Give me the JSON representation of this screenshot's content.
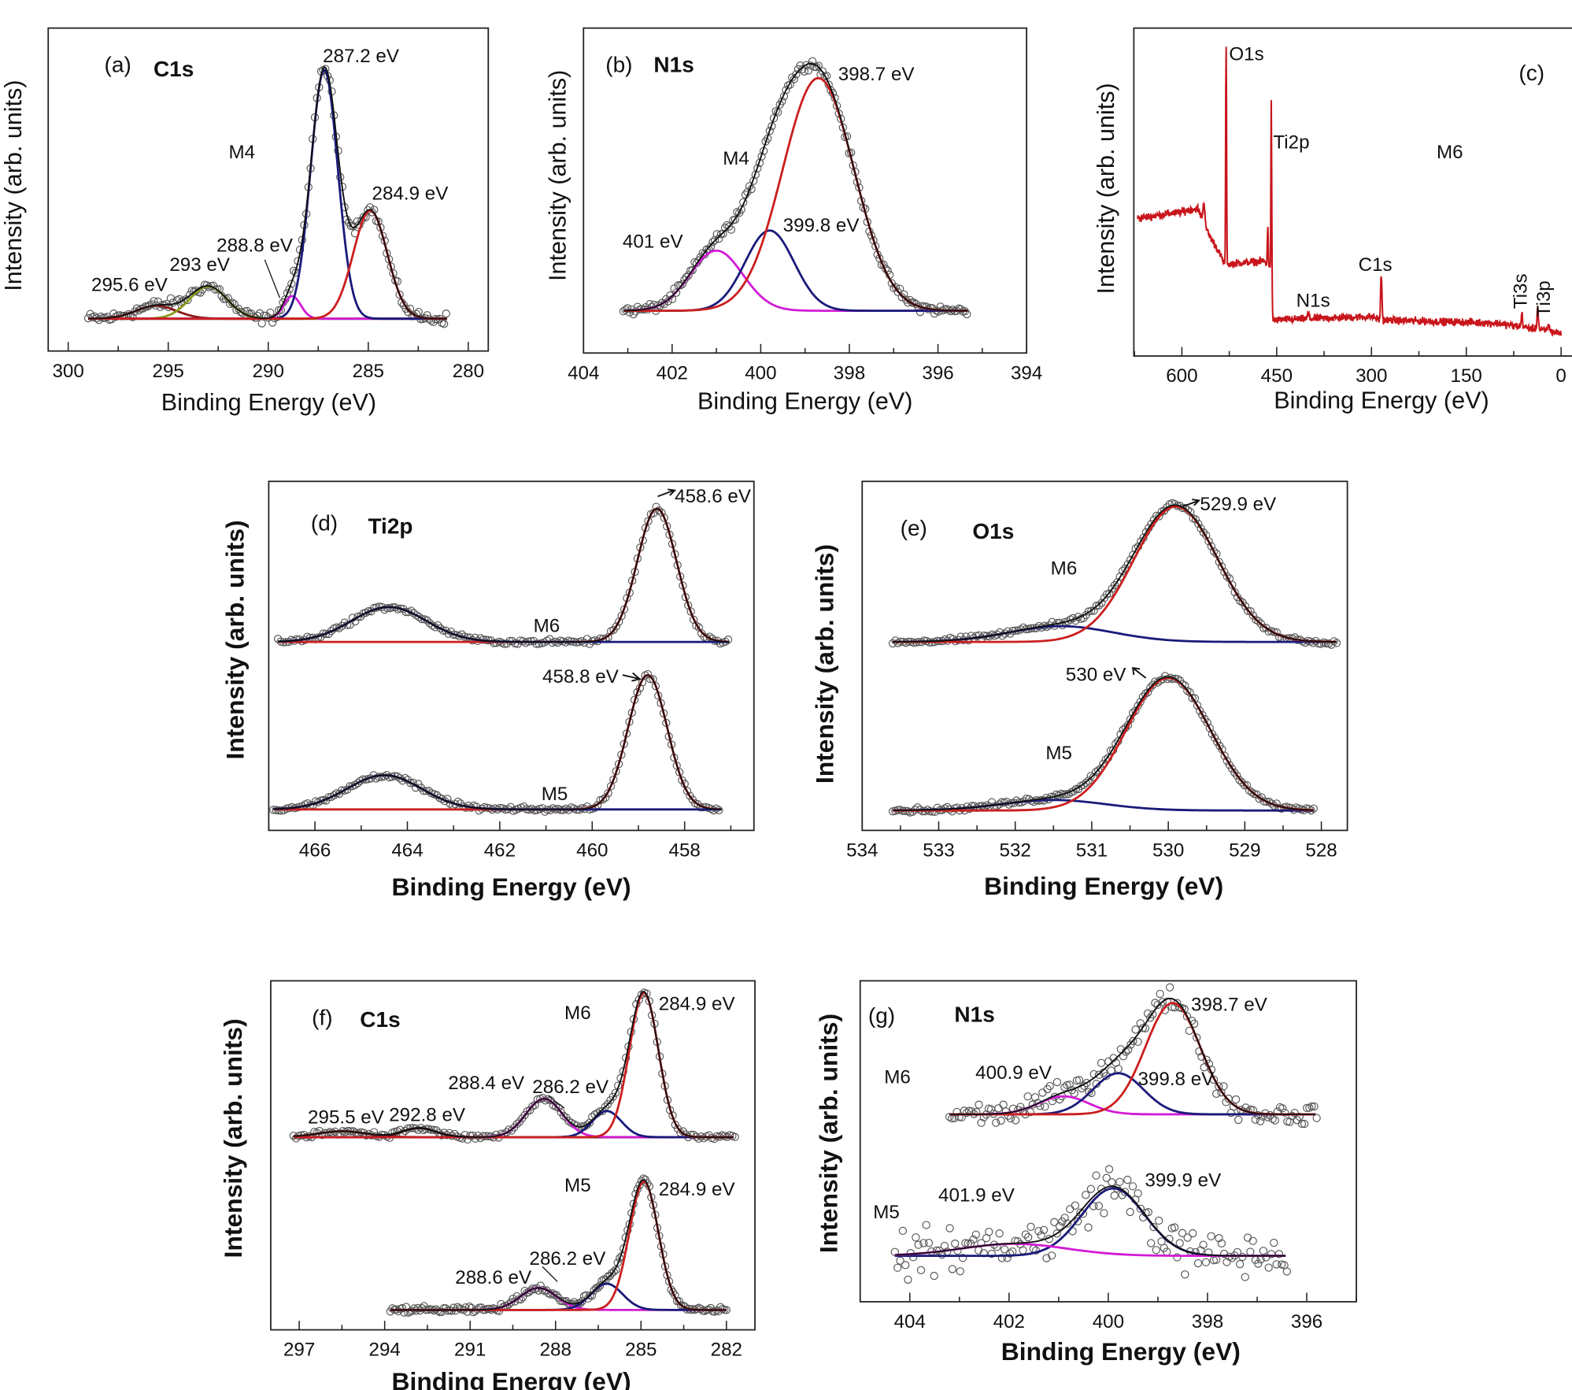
{
  "chart_data": [
    {
      "type": "line",
      "panel": "(a)",
      "title": "C1s",
      "xlabel": "Binding Energy (eV)",
      "ylabel": "Intensity (arb. units)",
      "xlim": [
        301,
        279
      ],
      "ylim": [
        0,
        1
      ],
      "ticks": {
        "major": [
          300,
          295,
          290,
          285,
          280
        ],
        "minor_step": 2.5
      },
      "annotations": [
        "M4",
        "287.2 eV",
        "284.9 eV",
        "288.8 eV",
        "293 eV",
        "295.6 eV"
      ],
      "series": [
        {
          "sample": "M4",
          "offset": 0.1,
          "range": [
            299,
            281
          ],
          "noise": 0.012,
          "components": [
            {
              "center": 295.6,
              "amplitude": 0.04,
              "fwhm": 2.4,
              "color": "#8b1a1a"
            },
            {
              "center": 293.0,
              "amplitude": 0.1,
              "fwhm": 2.2,
              "color": "#8a9a1a"
            },
            {
              "center": 288.8,
              "amplitude": 0.07,
              "fwhm": 1.0,
              "color": "#d21bd6"
            },
            {
              "center": 287.2,
              "amplitude": 0.77,
              "fwhm": 1.6,
              "color": "#1a1a7a"
            },
            {
              "center": 284.9,
              "amplitude": 0.335,
              "fwhm": 2.0,
              "color": "#cc1f1f"
            }
          ]
        }
      ]
    },
    {
      "type": "line",
      "panel": "(b)",
      "title": "N1s",
      "xlabel": "Binding Energy (eV)",
      "ylabel": "Intensity (arb. units)",
      "xlim": [
        404,
        394
      ],
      "ylim": [
        0,
        1
      ],
      "ticks": {
        "major": [
          404,
          402,
          400,
          398,
          396,
          394
        ],
        "minor_step": 1
      },
      "annotations": [
        "M4",
        "398.7 eV",
        "399.8 eV",
        "401 eV"
      ],
      "series": [
        {
          "sample": "M4",
          "offset": 0.13,
          "range": [
            403.1,
            395.3
          ],
          "noise": 0.01,
          "components": [
            {
              "center": 401.0,
              "amplitude": 0.185,
              "fwhm": 1.4,
              "color": "#d21bd6"
            },
            {
              "center": 399.8,
              "amplitude": 0.247,
              "fwhm": 1.3,
              "color": "#1a1a7a"
            },
            {
              "center": 398.7,
              "amplitude": 0.716,
              "fwhm": 1.9,
              "color": "#cc1f1f"
            }
          ]
        }
      ]
    },
    {
      "type": "line",
      "panel": "(c)",
      "xlabel": "Binding Energy (eV)",
      "ylabel": "Intensity (arb. units)",
      "xlim": [
        676,
        -52
      ],
      "ylim": [
        0,
        1
      ],
      "ticks": {
        "major": [
          600,
          450,
          300,
          150,
          0
        ],
        "minor_step": 75
      },
      "annotations": [
        "O1s",
        "Ti2p",
        "M6",
        "C1s",
        "N1s",
        "Ti3s",
        "Ti3p"
      ],
      "survey": {
        "sample": "M6",
        "range": [
          670,
          0
        ],
        "color": "#c8151b",
        "noise": 0.008,
        "background": [
          [
            670,
            0.42
          ],
          [
            600,
            0.44
          ],
          [
            575,
            0.45
          ],
          [
            560,
            0.38
          ],
          [
            545,
            0.33
          ],
          [
            532,
            0.28
          ],
          [
            470,
            0.29
          ],
          [
            461,
            0.27
          ],
          [
            456,
            0.11
          ],
          [
            300,
            0.12
          ],
          [
            285,
            0.11
          ],
          [
            100,
            0.1
          ],
          [
            0,
            0.07
          ]
        ],
        "peaks": [
          {
            "center": 565,
            "amplitude": 0.06,
            "fwhm": 4
          },
          {
            "center": 530,
            "amplitude": 0.67,
            "fwhm": 1.6
          },
          {
            "center": 464,
            "amplitude": 0.12,
            "fwhm": 1.6
          },
          {
            "center": 458.5,
            "amplitude": 0.58,
            "fwhm": 1.6
          },
          {
            "center": 400,
            "amplitude": 0.02,
            "fwhm": 2.5
          },
          {
            "center": 284.5,
            "amplitude": 0.135,
            "fwhm": 2.5
          },
          {
            "center": 62,
            "amplitude": 0.04,
            "fwhm": 2.5
          },
          {
            "center": 37,
            "amplitude": 0.07,
            "fwhm": 2.5
          },
          {
            "center": 20,
            "amplitude": 0.02,
            "fwhm": 3
          }
        ]
      }
    },
    {
      "type": "line",
      "panel": "(d)",
      "title": "Ti2p",
      "xlabel": "Binding Energy (eV)",
      "ylabel": "Intensity (arb. units)",
      "xlim": [
        467,
        456.5
      ],
      "ylim": [
        0,
        1
      ],
      "ticks": {
        "major": [
          466,
          464,
          462,
          460,
          458
        ],
        "minor_step": 1
      },
      "annotations": [
        "M6",
        "M5",
        "458.6 eV",
        "458.8 eV"
      ],
      "series": [
        {
          "sample": "M6",
          "offset": 0.54,
          "range": [
            466.8,
            457.0
          ],
          "noise": 0.005,
          "components": [
            {
              "center": 458.6,
              "amplitude": 0.382,
              "fwhm": 1.0,
              "color": "#cc1f1f"
            },
            {
              "center": 464.4,
              "amplitude": 0.1,
              "fwhm": 1.9,
              "color": "#1a1a7a"
            }
          ]
        },
        {
          "sample": "M5",
          "offset": 0.06,
          "range": [
            466.9,
            457.2
          ],
          "noise": 0.005,
          "components": [
            {
              "center": 458.8,
              "amplitude": 0.385,
              "fwhm": 1.0,
              "color": "#cc1f1f"
            },
            {
              "center": 464.5,
              "amplitude": 0.098,
              "fwhm": 1.9,
              "color": "#1a1a7a"
            }
          ]
        }
      ]
    },
    {
      "type": "line",
      "panel": "(e)",
      "title": "O1s",
      "xlabel": "Binding Energy (eV)",
      "ylabel": "Intensity (arb. units)",
      "xlim": [
        534,
        527.66
      ],
      "ylim": [
        0,
        1
      ],
      "ticks": {
        "major": [
          534,
          533,
          532,
          531,
          530,
          529,
          528
        ],
        "minor_step": 0.5
      },
      "annotations": [
        "M6",
        "M5",
        "529.9 eV",
        "530 eV"
      ],
      "series": [
        {
          "sample": "M6",
          "offset": 0.54,
          "range": [
            533.6,
            527.8
          ],
          "noise": 0.005,
          "components": [
            {
              "center": 531.4,
              "amplitude": 0.045,
              "fwhm": 1.6,
              "color": "#1a1a7a"
            },
            {
              "center": 529.9,
              "amplitude": 0.388,
              "fwhm": 1.3,
              "color": "#cc1f1f"
            }
          ]
        },
        {
          "sample": "M5",
          "offset": 0.057,
          "range": [
            533.6,
            528.1
          ],
          "noise": 0.005,
          "components": [
            {
              "center": 531.5,
              "amplitude": 0.03,
              "fwhm": 1.6,
              "color": "#1a1a7a"
            },
            {
              "center": 530.0,
              "amplitude": 0.38,
              "fwhm": 1.3,
              "color": "#cc1f1f"
            }
          ]
        }
      ]
    },
    {
      "type": "line",
      "panel": "(f)",
      "title": "C1s",
      "xlabel": "Binding Energy (eV)",
      "ylabel": "Intensity (arb. units)",
      "xlim": [
        298,
        281
      ],
      "ylim": [
        0,
        1
      ],
      "ticks": {
        "major": [
          297,
          294,
          291,
          288,
          285,
          282
        ],
        "minor_step": 1.5
      },
      "annotations": [
        "M6",
        "M5",
        "284.9 eV",
        "284.9 eV",
        "288.4 eV",
        "286.2 eV",
        "295.5 eV",
        "292.8 eV",
        "286.2 eV",
        "288.6 eV"
      ],
      "series": [
        {
          "sample": "M6",
          "offset": 0.552,
          "range": [
            297.2,
            281.7
          ],
          "noise": 0.006,
          "components": [
            {
              "center": 295.5,
              "amplitude": 0.017,
              "fwhm": 2.0,
              "color": "#8b1a1a"
            },
            {
              "center": 292.8,
              "amplitude": 0.026,
              "fwhm": 1.4,
              "color": "#3a0a0a"
            },
            {
              "center": 288.4,
              "amplitude": 0.11,
              "fwhm": 1.5,
              "color": "#d21bd6"
            },
            {
              "center": 286.2,
              "amplitude": 0.075,
              "fwhm": 1.2,
              "color": "#1a1a7a"
            },
            {
              "center": 284.9,
              "amplitude": 0.414,
              "fwhm": 1.2,
              "color": "#cc1f1f"
            }
          ]
        },
        {
          "sample": "M5",
          "offset": 0.057,
          "range": [
            293.8,
            282.0
          ],
          "noise": 0.006,
          "components": [
            {
              "center": 288.6,
              "amplitude": 0.063,
              "fwhm": 1.5,
              "color": "#d21bd6"
            },
            {
              "center": 286.2,
              "amplitude": 0.075,
              "fwhm": 1.3,
              "color": "#1a1a7a"
            },
            {
              "center": 284.9,
              "amplitude": 0.368,
              "fwhm": 1.2,
              "color": "#cc1f1f"
            }
          ]
        }
      ]
    },
    {
      "type": "line",
      "panel": "(g)",
      "title": "N1s",
      "xlabel": "Binding Energy (eV)",
      "ylabel": "Intensity (arb. units)",
      "xlim": [
        405,
        395
      ],
      "ylim": [
        0,
        1
      ],
      "ticks": {
        "major": [
          404,
          402,
          400,
          398,
          396
        ],
        "minor_step": 1
      },
      "annotations": [
        "M6",
        "M5",
        "398.7 eV",
        "400.9 eV",
        "399.8 eV",
        "399.9 eV",
        "401.9 eV"
      ],
      "series": [
        {
          "sample": "M6",
          "offset": 0.584,
          "range": [
            403.2,
            395.8
          ],
          "noise": 0.025,
          "components": [
            {
              "center": 400.9,
              "amplitude": 0.056,
              "fwhm": 1.2,
              "color": "#d21bd6"
            },
            {
              "center": 399.8,
              "amplitude": 0.128,
              "fwhm": 1.2,
              "color": "#1a1a7a"
            },
            {
              "center": 398.7,
              "amplitude": 0.347,
              "fwhm": 1.3,
              "color": "#cc1f1f"
            }
          ]
        },
        {
          "sample": "M5",
          "offset": 0.143,
          "range": [
            404.3,
            396.4
          ],
          "noise": 0.05,
          "components": [
            {
              "center": 399.9,
              "amplitude": 0.21,
              "fwhm": 1.5,
              "color": "#1a1a7a"
            },
            {
              "center": 401.9,
              "amplitude": 0.0375,
              "fwhm": 2.5,
              "color": "#d21bd6"
            }
          ]
        }
      ]
    }
  ]
}
